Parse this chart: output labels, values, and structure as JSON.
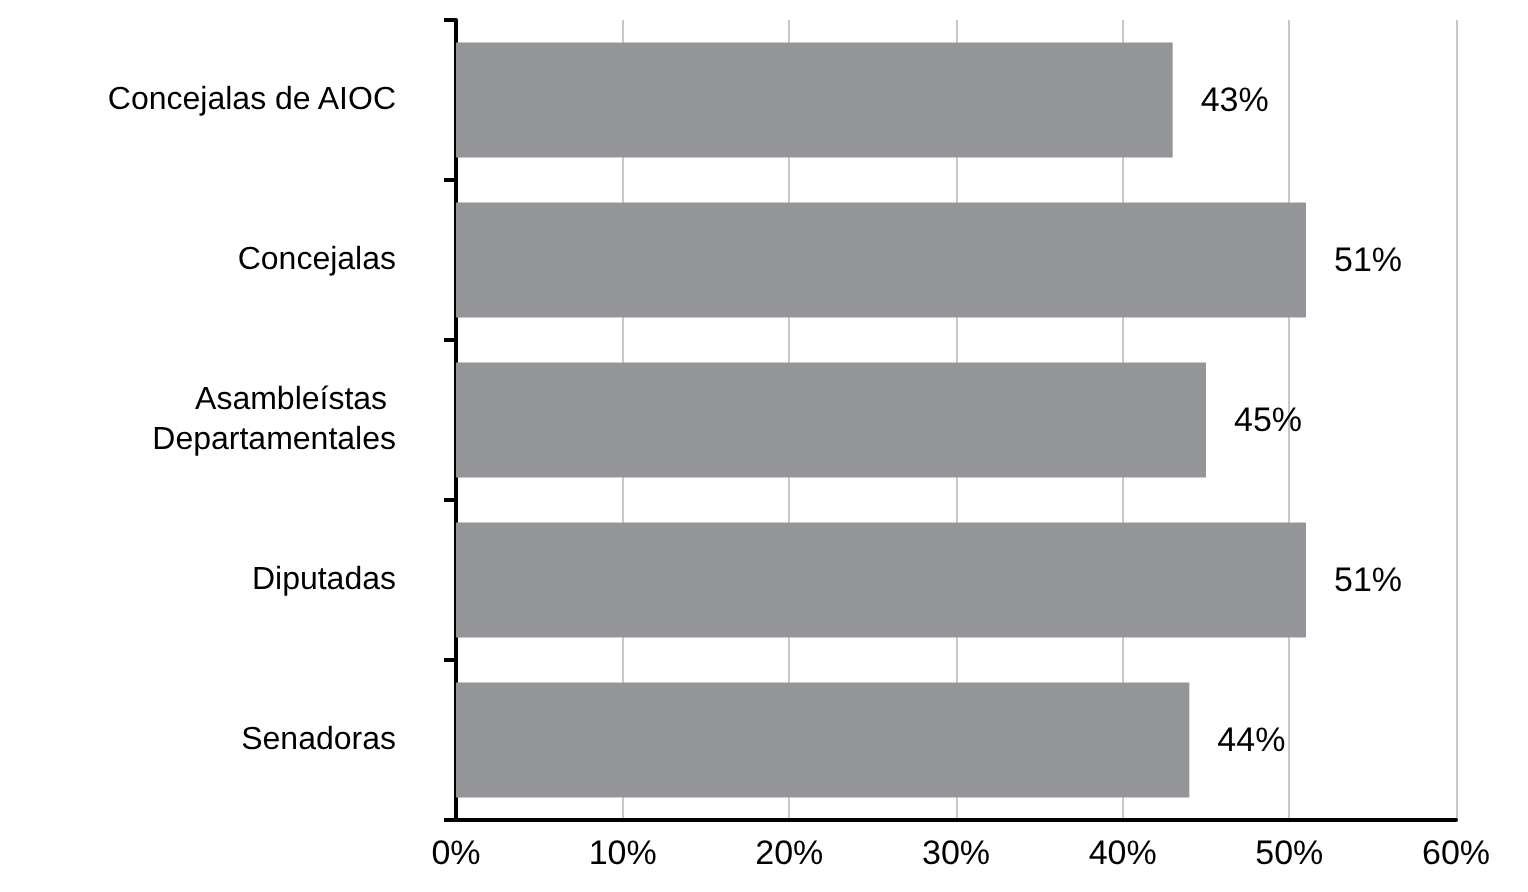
{
  "chart_data": {
    "type": "bar",
    "orientation": "horizontal",
    "categories": [
      "Concejalas de AIOC",
      "Concejalas",
      "Asambleístas Departamentales",
      "Diputadas",
      "Senadoras"
    ],
    "values": [
      43,
      51,
      45,
      51,
      44
    ],
    "value_labels": [
      "43%",
      "51%",
      "45%",
      "51%",
      "44%"
    ],
    "color": "#939598",
    "xlim": [
      0,
      60
    ],
    "xticks": [
      {
        "value": 0,
        "label": "0%"
      },
      {
        "value": 10,
        "label": "10%"
      },
      {
        "value": 20,
        "label": "20%"
      },
      {
        "value": 30,
        "label": "30%"
      },
      {
        "value": 40,
        "label": "40%"
      },
      {
        "value": 50,
        "label": "50%"
      },
      {
        "value": 60,
        "label": "60%"
      }
    ],
    "grid": "x"
  }
}
